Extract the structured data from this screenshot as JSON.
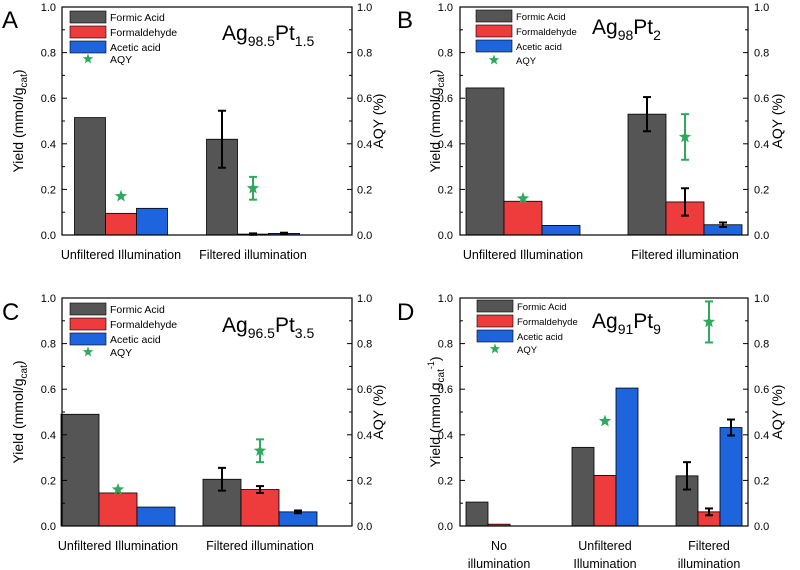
{
  "colors": {
    "formic": "#555555",
    "formaldehyde": "#ee3b3b",
    "acetic": "#1e64dc",
    "aqy": "#2eaa5c",
    "axis": "#000000"
  },
  "chart_data": [
    {
      "panel": "A",
      "type": "bar",
      "title": {
        "base": "Ag",
        "sub1": "98.5",
        "mid": "Pt",
        "sub2": "1.5"
      },
      "categories": [
        "Unfiltered Illumination",
        "Filtered illumination"
      ],
      "series": [
        {
          "name": "Formic Acid",
          "values": [
            0.515,
            0.42
          ],
          "errors": [
            null,
            0.125
          ]
        },
        {
          "name": "Formaldehyde",
          "values": [
            0.095,
            0.004
          ],
          "errors": [
            null,
            0.003
          ]
        },
        {
          "name": "Acetic acid",
          "values": [
            0.117,
            0.007
          ],
          "errors": [
            null,
            0.003
          ]
        }
      ],
      "aqy": {
        "name": "AQY",
        "values": [
          0.17,
          0.205
        ],
        "errors": [
          null,
          0.05
        ]
      },
      "ylabel": {
        "base": "Yield (mmol/g",
        "sub": "cat",
        "tail": ")"
      },
      "y2label": "AQY (%)",
      "ylim": [
        0,
        1.0
      ],
      "y2lim": [
        0,
        1.0
      ],
      "yticks": [
        "0.0",
        "0.2",
        "0.4",
        "0.6",
        "0.8",
        "1.0"
      ],
      "legend": "top-left"
    },
    {
      "panel": "B",
      "type": "bar",
      "title": {
        "base": "Ag",
        "sub1": "98",
        "mid": "Pt",
        "sub2": "2"
      },
      "categories": [
        "Unfiltered Illumination",
        "Filtered illumination"
      ],
      "series": [
        {
          "name": "Formic Acid",
          "values": [
            0.645,
            0.53
          ],
          "errors": [
            null,
            0.075
          ]
        },
        {
          "name": "Formaldehyde",
          "values": [
            0.148,
            0.145
          ],
          "errors": [
            null,
            0.06
          ]
        },
        {
          "name": "Acetic acid",
          "values": [
            0.042,
            0.045
          ],
          "errors": [
            null,
            0.01
          ]
        }
      ],
      "aqy": {
        "name": "AQY",
        "values": [
          0.16,
          0.43
        ],
        "errors": [
          null,
          0.1
        ]
      },
      "ylabel": {
        "base": "Yield (mmol/g",
        "sub": "cat",
        "tail": ")"
      },
      "y2label": "AQY (%)",
      "ylim": [
        0,
        1.0
      ],
      "y2lim": [
        0,
        1.0
      ],
      "yticks": [
        "0.0",
        "0.2",
        "0.4",
        "0.6",
        "0.8",
        "1.0"
      ],
      "legend": "top-left"
    },
    {
      "panel": "C",
      "type": "bar",
      "title": {
        "base": "Ag",
        "sub1": "96.5",
        "mid": "Pt",
        "sub2": "3.5"
      },
      "categories": [
        "Unfiltered Illumination",
        "Filtered illumination"
      ],
      "series": [
        {
          "name": "Formic Acid",
          "values": [
            0.49,
            0.205
          ],
          "errors": [
            null,
            0.05
          ]
        },
        {
          "name": "Formaldehyde",
          "values": [
            0.145,
            0.16
          ],
          "errors": [
            null,
            0.015
          ]
        },
        {
          "name": "Acetic acid",
          "values": [
            0.083,
            0.062
          ],
          "errors": [
            null,
            0.006
          ]
        }
      ],
      "aqy": {
        "name": "AQY",
        "values": [
          0.16,
          0.33
        ],
        "errors": [
          null,
          0.05
        ]
      },
      "ylabel": {
        "base": "Yield (mmol/g",
        "sub": "cat",
        "tail": ")"
      },
      "y2label": "AQY (%)",
      "ylim": [
        0,
        1.0
      ],
      "y2lim": [
        0,
        1.0
      ],
      "yticks": [
        "0.0",
        "0.2",
        "0.4",
        "0.6",
        "0.8",
        "1.0"
      ],
      "legend": "top-left"
    },
    {
      "panel": "D",
      "type": "bar",
      "title": {
        "base": "Ag",
        "sub1": "91",
        "mid": "Pt",
        "sub2": "9"
      },
      "categories": [
        "No illumination",
        "Unfiltered Illumination",
        "Filtered illumination"
      ],
      "series": [
        {
          "name": "Formic Acid",
          "values": [
            0.105,
            0.345,
            0.22
          ],
          "errors": [
            null,
            null,
            0.06
          ]
        },
        {
          "name": "Formaldehyde",
          "values": [
            0.008,
            0.222,
            0.062
          ],
          "errors": [
            null,
            null,
            0.015
          ]
        },
        {
          "name": "Acetic acid",
          "values": [
            0.0,
            0.605,
            0.432
          ],
          "errors": [
            null,
            null,
            0.035
          ]
        }
      ],
      "aqy": {
        "name": "AQY",
        "values": [
          null,
          0.46,
          0.895
        ],
        "errors": [
          null,
          null,
          0.09
        ]
      },
      "ylabel": {
        "base": "Yield (mmol.g",
        "sub": "cat",
        "sup": "-1",
        "tail": ")"
      },
      "y2label": "AQY (%)",
      "ylim": [
        0,
        1.0
      ],
      "y2lim": [
        0,
        1.0
      ],
      "yticks": [
        "0.0",
        "0.2",
        "0.4",
        "0.6",
        "0.8",
        "1.0"
      ],
      "legend": "top-left"
    }
  ]
}
